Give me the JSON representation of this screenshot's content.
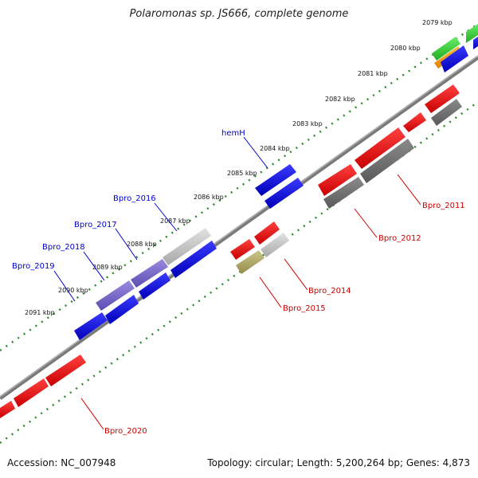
{
  "title": "Polaromonas sp. JS666, complete genome",
  "footer": {
    "accession": "Accession: NC_007948",
    "summary": "Topology: circular; Length: 5,200,264 bp; Genes: 4,873"
  },
  "colors": {
    "backbone": "#8c8c8c",
    "dots": "#2e8b2e",
    "blue": "#0000ee",
    "red": "#ee1111",
    "gray": "#777777",
    "light_gray": "#c8c8c8",
    "purple": "#7b68cc",
    "olive": "#b3ac66",
    "green": "#33cc33",
    "orange": "#ff9900",
    "label_blue": "#0000cc",
    "label_red": "#cc0000"
  },
  "ticks": [
    "2079 kbp",
    "2080 kbp",
    "2081 kbp",
    "2082 kbp",
    "2083 kbp",
    "2084 kbp",
    "2085 kbp",
    "2086 kbp",
    "2087 kbp",
    "2088 kbp",
    "2089 kbp",
    "2090 kbp",
    "2091 kbp"
  ],
  "gene_labels": {
    "hemH": "hemH",
    "bpro_2016": "Bpro_2016",
    "bpro_2017": "Bpro_2017",
    "bpro_2018": "Bpro_2018",
    "bpro_2019": "Bpro_2019",
    "bpro_2011": "Bpro_2011",
    "bpro_2012": "Bpro_2012",
    "bpro_2014": "Bpro_2014",
    "bpro_2015": "Bpro_2015",
    "bpro_2020": "Bpro_2020"
  }
}
